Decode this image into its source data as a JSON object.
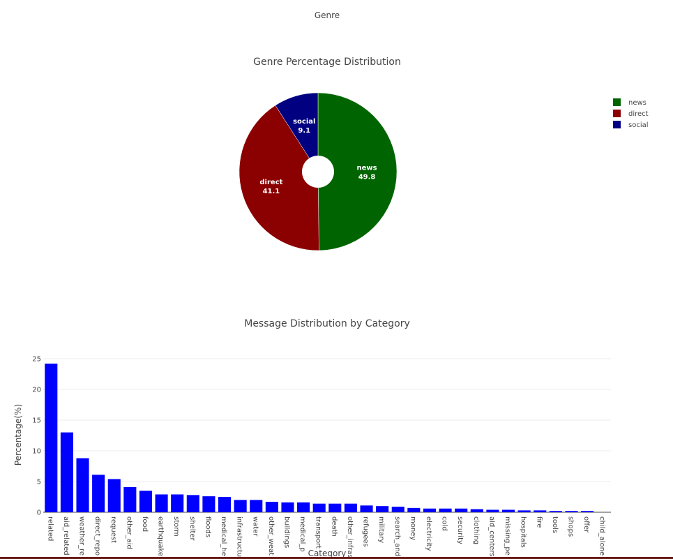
{
  "header": {
    "title": "Genre"
  },
  "chart_data": [
    {
      "type": "pie",
      "title": "Genre Percentage Distribution",
      "hole": true,
      "legend_position": "top-right",
      "slices": [
        {
          "label": "news",
          "value": 49.8,
          "color": "#006400"
        },
        {
          "label": "direct",
          "value": 41.1,
          "color": "#8b0000"
        },
        {
          "label": "social",
          "value": 9.1,
          "color": "#000080"
        }
      ]
    },
    {
      "type": "bar",
      "title": "Message Distribution by Category",
      "xlabel": "Category",
      "ylabel": "Percentage(%)",
      "ylim": [
        0,
        25
      ],
      "yticks": [
        0,
        5,
        10,
        15,
        20,
        25
      ],
      "grid": true,
      "color": "#0000ff",
      "categories": [
        "related",
        "aid_related",
        "weather_re",
        "direct_repo",
        "request",
        "other_aid",
        "food",
        "earthquake",
        "storm",
        "shelter",
        "floods",
        "medical_he",
        "infrastructu",
        "water",
        "other_weat",
        "buildings",
        "medical_p",
        "transport",
        "death",
        "other_infras",
        "refugees",
        "military",
        "search_and",
        "money",
        "electricity",
        "cold",
        "security",
        "clothing",
        "aid_centers",
        "missing_pe",
        "hospitals",
        "fire",
        "tools",
        "shops",
        "offer",
        "child_alone"
      ],
      "values": [
        24.2,
        13.0,
        8.8,
        6.1,
        5.4,
        4.1,
        3.5,
        2.9,
        2.9,
        2.8,
        2.6,
        2.5,
        2.0,
        2.0,
        1.7,
        1.6,
        1.6,
        1.4,
        1.4,
        1.4,
        1.1,
        1.0,
        0.9,
        0.7,
        0.6,
        0.6,
        0.6,
        0.5,
        0.4,
        0.4,
        0.3,
        0.3,
        0.2,
        0.2,
        0.2,
        0.0
      ]
    }
  ]
}
